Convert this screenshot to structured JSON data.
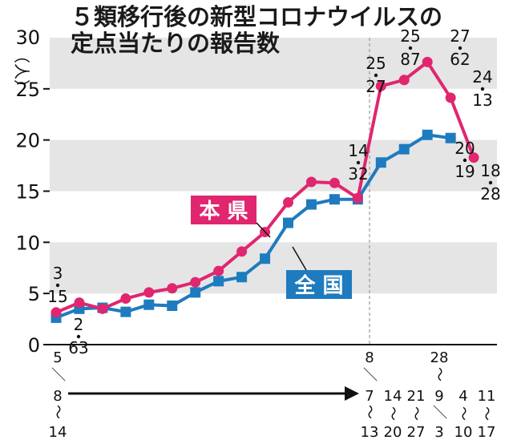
{
  "chart_data": {
    "type": "line",
    "title_line1": "５類移行後の新型コロナウイルスの",
    "title_line2": "定点当たりの報告数",
    "ylabel": "30（人）",
    "ylim": [
      0,
      30
    ],
    "yticks": [
      "0",
      "5",
      "10",
      "15",
      "20",
      "25"
    ],
    "grid": "alternating horizontal bands",
    "colors": {
      "prefecture": "#e0266f",
      "national": "#1e7bbf",
      "band": "#e5e5e5"
    },
    "x_count": 20,
    "series": [
      {
        "name": "本 県",
        "values": [
          3.15,
          4.1,
          3.5,
          4.5,
          5.1,
          5.5,
          6.1,
          7.2,
          9.1,
          11.0,
          13.9,
          15.9,
          15.8,
          14.32,
          25.27,
          25.87,
          27.62,
          24.13,
          18.28
        ]
      },
      {
        "name": "全 国",
        "values": [
          2.63,
          3.5,
          3.6,
          3.2,
          3.9,
          3.8,
          5.1,
          6.2,
          6.6,
          8.4,
          11.9,
          13.7,
          14.2,
          14.2,
          17.8,
          19.1,
          20.5,
          20.19
        ]
      }
    ],
    "annotations": [
      {
        "point": 0,
        "series": "本 県",
        "int": "3",
        "dec": "15"
      },
      {
        "point": 0,
        "series": "全 国",
        "int": "2",
        "dec": "63"
      },
      {
        "point": 13,
        "series": "本 県",
        "int": "14",
        "dec": "32"
      },
      {
        "point": 14,
        "series": "本 県",
        "int": "25",
        "dec": "27"
      },
      {
        "point": 15,
        "series": "本 県",
        "int": "25",
        "dec": "87"
      },
      {
        "point": 16,
        "series": "本 県",
        "int": "27",
        "dec": "62"
      },
      {
        "point": 17,
        "series": "本 県",
        "int": "24",
        "dec": "13"
      },
      {
        "point": 17,
        "series": "全 国",
        "int": "20",
        "dec": "19"
      },
      {
        "point": 18,
        "series": "本 県",
        "int": "18",
        "dec": "28"
      }
    ],
    "x_labels_left": [
      "5",
      "／",
      "8",
      "～",
      "14"
    ],
    "x_labels_right": [
      [
        "8",
        "／",
        "7",
        "～",
        "13"
      ],
      [
        "14",
        "～",
        "20"
      ],
      [
        "21",
        "～",
        "27"
      ],
      [
        "28",
        "～",
        "9",
        "／",
        "3"
      ],
      [
        "4",
        "～",
        "10"
      ],
      [
        "11",
        "～",
        "17"
      ]
    ]
  }
}
